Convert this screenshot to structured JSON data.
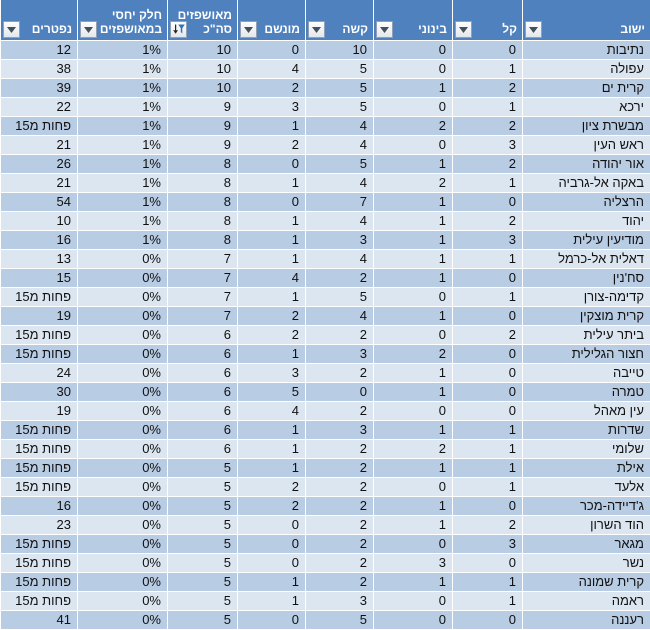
{
  "table": {
    "columns": [
      {
        "key": "yishuv",
        "label": "ישוב",
        "group": ""
      },
      {
        "key": "kal",
        "label": "קל",
        "group": ""
      },
      {
        "key": "beinoni",
        "label": "בינוני",
        "group": ""
      },
      {
        "key": "kashe",
        "label": "קשה",
        "group": ""
      },
      {
        "key": "munsham",
        "label": "מונשם",
        "group": ""
      },
      {
        "key": "total",
        "label": "סה\"כ",
        "group": "מאושפזים"
      },
      {
        "key": "share",
        "label": "במאושפזים",
        "group": "חלק יחסי"
      },
      {
        "key": "niftarim",
        "label": "נפטרים",
        "group": ""
      }
    ],
    "rows": [
      [
        "נתיבות",
        "0",
        "0",
        "10",
        "0",
        "10",
        "1%",
        "12"
      ],
      [
        "עפולה",
        "1",
        "0",
        "5",
        "4",
        "10",
        "1%",
        "38"
      ],
      [
        "קרית ים",
        "2",
        "1",
        "5",
        "2",
        "10",
        "1%",
        "39"
      ],
      [
        "ירכא",
        "1",
        "0",
        "5",
        "3",
        "9",
        "1%",
        "22"
      ],
      [
        "מבשרת ציון",
        "2",
        "2",
        "4",
        "1",
        "9",
        "1%",
        "פחות מ15"
      ],
      [
        "ראש העין",
        "3",
        "0",
        "4",
        "2",
        "9",
        "1%",
        "21"
      ],
      [
        "אור יהודה",
        "2",
        "1",
        "5",
        "0",
        "8",
        "1%",
        "26"
      ],
      [
        "באקה אל-גרביה",
        "1",
        "2",
        "4",
        "1",
        "8",
        "1%",
        "21"
      ],
      [
        "הרצליה",
        "0",
        "1",
        "7",
        "0",
        "8",
        "1%",
        "54"
      ],
      [
        "יהוד",
        "2",
        "1",
        "4",
        "1",
        "8",
        "1%",
        "10"
      ],
      [
        "מודיעין עילית",
        "3",
        "1",
        "3",
        "1",
        "8",
        "1%",
        "16"
      ],
      [
        "דאלית אל-כרמל",
        "1",
        "1",
        "4",
        "1",
        "7",
        "0%",
        "13"
      ],
      [
        "סח'נין",
        "0",
        "1",
        "2",
        "4",
        "7",
        "0%",
        "15"
      ],
      [
        "קדימה-צורן",
        "1",
        "0",
        "5",
        "1",
        "7",
        "0%",
        "פחות מ15"
      ],
      [
        "קרית מוצקין",
        "0",
        "1",
        "4",
        "2",
        "7",
        "0%",
        "19"
      ],
      [
        "ביתר עילית",
        "2",
        "0",
        "2",
        "2",
        "6",
        "0%",
        "פחות מ15"
      ],
      [
        "חצור הגלילית",
        "0",
        "2",
        "3",
        "1",
        "6",
        "0%",
        "פחות מ15"
      ],
      [
        "טייבה",
        "0",
        "1",
        "2",
        "3",
        "6",
        "0%",
        "24"
      ],
      [
        "טמרה",
        "0",
        "1",
        "0",
        "5",
        "6",
        "0%",
        "30"
      ],
      [
        "עין מאהל",
        "0",
        "0",
        "2",
        "4",
        "6",
        "0%",
        "19"
      ],
      [
        "שדרות",
        "1",
        "1",
        "3",
        "1",
        "6",
        "0%",
        "פחות מ15"
      ],
      [
        "שלומי",
        "1",
        "2",
        "2",
        "1",
        "6",
        "0%",
        "פחות מ15"
      ],
      [
        "אילת",
        "1",
        "1",
        "2",
        "1",
        "5",
        "0%",
        "פחות מ15"
      ],
      [
        "אלעד",
        "1",
        "0",
        "2",
        "2",
        "5",
        "0%",
        "פחות מ15"
      ],
      [
        "ג'דיידה-מכר",
        "0",
        "1",
        "2",
        "2",
        "5",
        "0%",
        "16"
      ],
      [
        "הוד השרון",
        "2",
        "1",
        "2",
        "0",
        "5",
        "0%",
        "23"
      ],
      [
        "מגאר",
        "3",
        "0",
        "2",
        "0",
        "5",
        "0%",
        "פחות מ15"
      ],
      [
        "נשר",
        "0",
        "3",
        "2",
        "0",
        "5",
        "0%",
        "פחות מ15"
      ],
      [
        "קרית שמונה",
        "1",
        "1",
        "2",
        "1",
        "5",
        "0%",
        "פחות מ15"
      ],
      [
        "ראמה",
        "1",
        "0",
        "3",
        "1",
        "5",
        "0%",
        "פחות מ15"
      ],
      [
        "רעננה",
        "0",
        "0",
        "5",
        "0",
        "5",
        "0%",
        "41"
      ]
    ]
  },
  "colors": {
    "header_bg": "#4E81BD",
    "band_dark": "#B8CCE4",
    "band_light": "#DCE6F1",
    "gridline": "#FFFFFF",
    "funnel_blue": "#2E75B6"
  }
}
